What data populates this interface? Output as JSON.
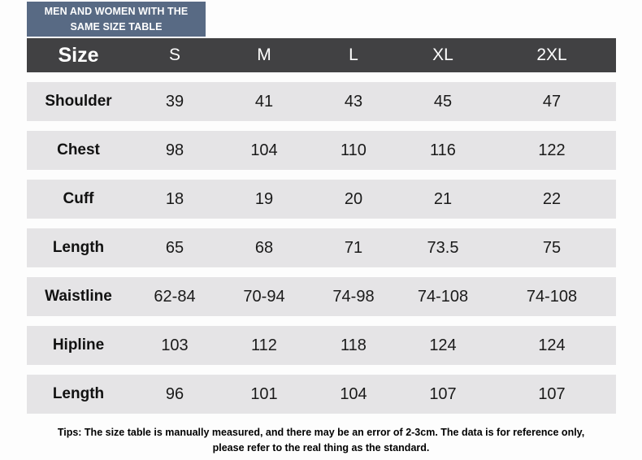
{
  "badge": {
    "line1": "MEN AND WOMEN WITH THE",
    "line2": "SAME SIZE TABLE"
  },
  "table": {
    "header": [
      "Size",
      "S",
      "M",
      "L",
      "XL",
      "2XL"
    ],
    "rows": [
      {
        "label": "Shoulder",
        "values": [
          "39",
          "41",
          "43",
          "45",
          "47"
        ]
      },
      {
        "label": "Chest",
        "values": [
          "98",
          "104",
          "110",
          "116",
          "122"
        ]
      },
      {
        "label": "Cuff",
        "values": [
          "18",
          "19",
          "20",
          "21",
          "22"
        ]
      },
      {
        "label": "Length",
        "values": [
          "65",
          "68",
          "71",
          "73.5",
          "75"
        ]
      },
      {
        "label": "Waistline",
        "values": [
          "62-84",
          "70-94",
          "74-98",
          "74-108",
          "74-108"
        ]
      },
      {
        "label": "Hipline",
        "values": [
          "103",
          "112",
          "118",
          "124",
          "124"
        ]
      },
      {
        "label": "Length",
        "values": [
          "96",
          "101",
          "104",
          "107",
          "107"
        ]
      }
    ]
  },
  "tips": "Tips: The size table is manually measured, and there may be an error of 2-3cm. The data is for reference only, please refer to the real thing as the standard.",
  "colors": {
    "badge_bg": "#586a84",
    "header_bg": "#414143",
    "row_bg": "#e5e4e6",
    "header_text": "#ffffff",
    "body_text": "#1a1a1a"
  },
  "chart_data": {
    "type": "table",
    "title": "MEN AND WOMEN WITH THE SAME SIZE TABLE",
    "columns": [
      "Size",
      "S",
      "M",
      "L",
      "XL",
      "2XL"
    ],
    "rows": [
      [
        "Shoulder",
        "39",
        "41",
        "43",
        "45",
        "47"
      ],
      [
        "Chest",
        "98",
        "104",
        "110",
        "116",
        "122"
      ],
      [
        "Cuff",
        "18",
        "19",
        "20",
        "21",
        "22"
      ],
      [
        "Length",
        "65",
        "68",
        "71",
        "73.5",
        "75"
      ],
      [
        "Waistline",
        "62-84",
        "70-94",
        "74-98",
        "74-108",
        "74-108"
      ],
      [
        "Hipline",
        "103",
        "112",
        "118",
        "124",
        "124"
      ],
      [
        "Length",
        "96",
        "101",
        "104",
        "107",
        "107"
      ]
    ],
    "footnote": "Tips: The size table is manually measured, and there may be an error of 2-3cm. The data is for reference only, please refer to the real thing as the standard."
  }
}
